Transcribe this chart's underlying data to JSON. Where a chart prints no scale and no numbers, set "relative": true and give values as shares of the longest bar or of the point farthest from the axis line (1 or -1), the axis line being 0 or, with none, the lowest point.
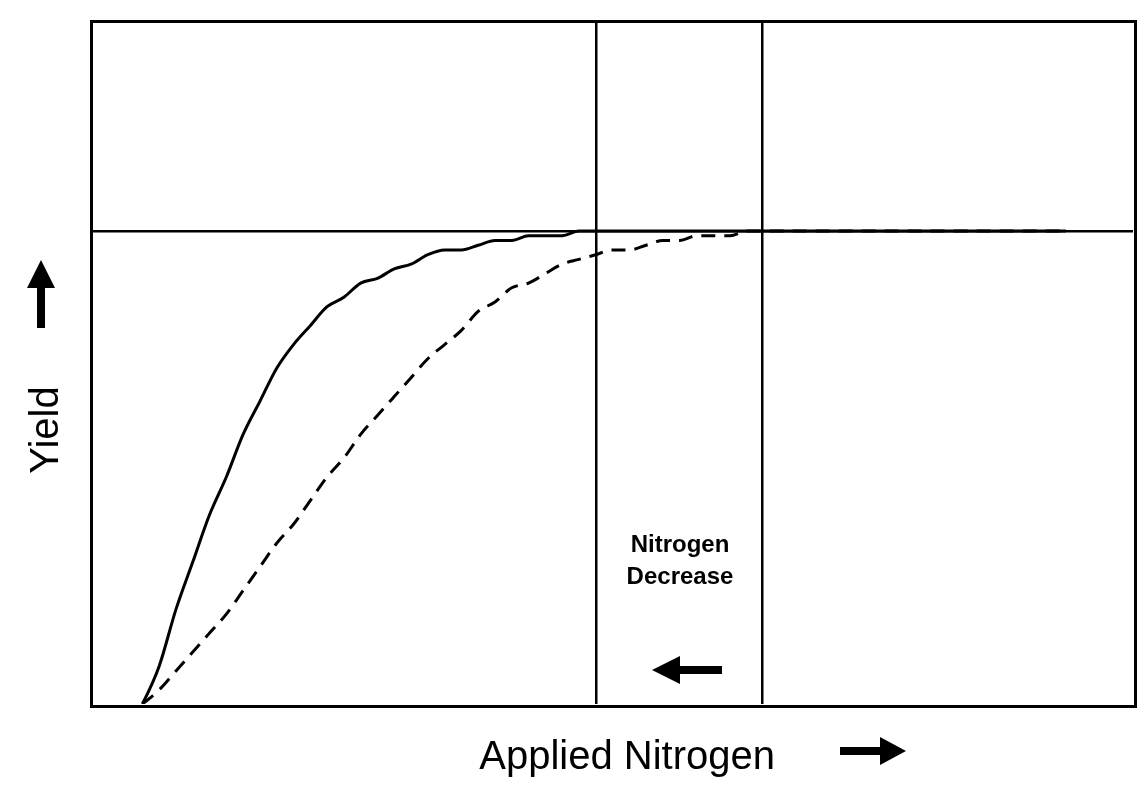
{
  "chart_data": {
    "type": "line",
    "relative": true,
    "xlabel": "Applied Nitrogen",
    "ylabel": "Yield",
    "categories": [
      null,
      null,
      null,
      null,
      null,
      null,
      null,
      null,
      null,
      null,
      null,
      null,
      null,
      null,
      null,
      null,
      null,
      null,
      null,
      null,
      null,
      null,
      null,
      null,
      null,
      null,
      null,
      null,
      null,
      null,
      null,
      null,
      null,
      null,
      null,
      null,
      null,
      null,
      null,
      null,
      null,
      null,
      null,
      null,
      null,
      null,
      null,
      null,
      null,
      null,
      null,
      null,
      null,
      null,
      null,
      null,
      null,
      null,
      null,
      null,
      null,
      null,
      null
    ],
    "series": [
      {
        "color": "#000000",
        "line_style": "solid",
        "values": [
          null,
          null,
          null,
          0,
          0.08,
          0.2,
          0.3,
          0.4,
          0.48,
          0.57,
          0.64,
          0.71,
          0.76,
          0.8,
          0.84,
          0.86,
          0.89,
          0.9,
          0.92,
          0.93,
          0.95,
          0.96,
          0.96,
          0.97,
          0.98,
          0.98,
          0.99,
          0.99,
          0.99,
          1,
          1,
          1,
          1,
          1,
          1,
          1,
          1,
          1,
          1,
          1,
          1,
          1,
          1,
          1,
          1,
          1,
          1,
          1,
          1,
          1,
          1,
          1,
          1,
          1,
          1,
          1,
          1,
          1,
          1,
          null,
          null,
          null,
          null
        ]
      },
      {
        "color": "#000000",
        "line_style": "dashed",
        "values": [
          null,
          null,
          null,
          0,
          0.03,
          0.07,
          0.11,
          0.15,
          0.19,
          0.24,
          0.29,
          0.34,
          0.38,
          0.43,
          0.48,
          0.52,
          0.57,
          0.61,
          0.65,
          0.69,
          0.73,
          0.76,
          0.79,
          0.83,
          0.85,
          0.88,
          0.89,
          0.91,
          0.93,
          0.94,
          0.95,
          0.96,
          0.96,
          0.97,
          0.98,
          0.98,
          0.99,
          0.99,
          0.99,
          1,
          1,
          1,
          1,
          1,
          1,
          1,
          1,
          1,
          1,
          1,
          1,
          1,
          1,
          1,
          1,
          1,
          1,
          1,
          1,
          null,
          null,
          null,
          null
        ]
      }
    ],
    "annotations": [
      "Nitrogen Decrease"
    ],
    "grid": false,
    "legend": false,
    "marker": "none"
  }
}
